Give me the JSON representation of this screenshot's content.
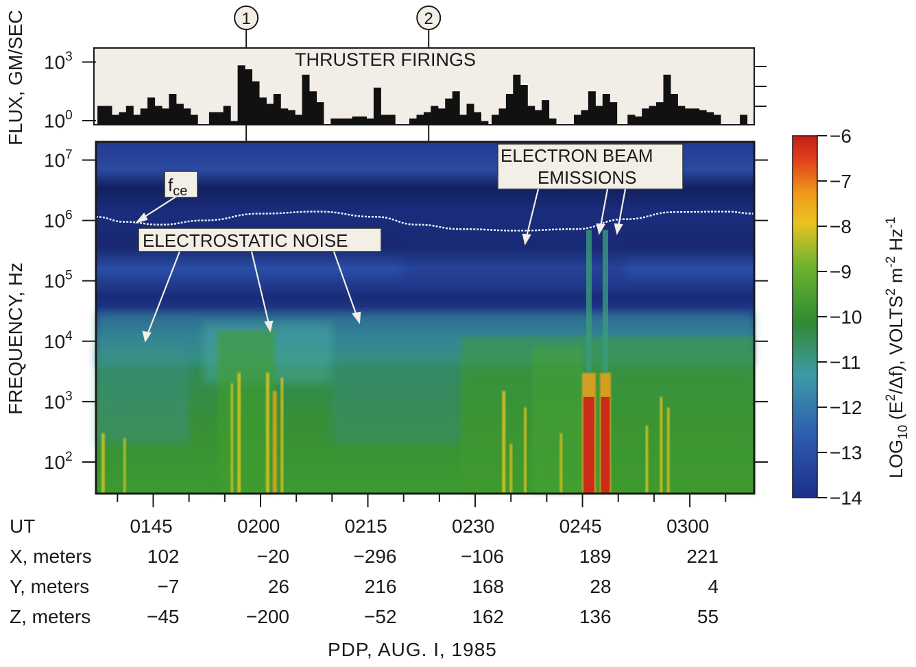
{
  "chart_data": [
    {
      "type": "bar",
      "title": "THRUSTER FIRINGS",
      "ylabel": "FLUX, GM/SEC",
      "yscale": "log",
      "ylim": [
        1,
        3000
      ],
      "yticks": [
        {
          "v": 1,
          "label": "10",
          "sup": "0"
        },
        {
          "v": 1000,
          "label": "10",
          "sup": "3"
        }
      ],
      "x_range_ut": [
        "01:37",
        "03:09"
      ],
      "x_start_min": 97,
      "x_end_min": 189,
      "bar_width_min": 1.0,
      "bars": [
        {
          "t": 97.2,
          "v": 8
        },
        {
          "t": 98.2,
          "v": 8
        },
        {
          "t": 99.2,
          "v": 3
        },
        {
          "t": 100.2,
          "v": 4
        },
        {
          "t": 101.2,
          "v": 8
        },
        {
          "t": 102.2,
          "v": 3
        },
        {
          "t": 103.2,
          "v": 6
        },
        {
          "t": 104.2,
          "v": 20
        },
        {
          "t": 105.2,
          "v": 8
        },
        {
          "t": 106.2,
          "v": 6
        },
        {
          "t": 107.2,
          "v": 30
        },
        {
          "t": 108.2,
          "v": 10
        },
        {
          "t": 109.2,
          "v": 6
        },
        {
          "t": 110.2,
          "v": 3
        },
        {
          "t": 112.8,
          "v": 4
        },
        {
          "t": 113.8,
          "v": 4
        },
        {
          "t": 114.8,
          "v": 8
        },
        {
          "t": 115.8,
          "v": 1.5
        },
        {
          "t": 116.8,
          "v": 700
        },
        {
          "t": 117.8,
          "v": 450
        },
        {
          "t": 118.8,
          "v": 120
        },
        {
          "t": 119.8,
          "v": 20
        },
        {
          "t": 120.8,
          "v": 10
        },
        {
          "t": 121.8,
          "v": 30
        },
        {
          "t": 122.8,
          "v": 6
        },
        {
          "t": 123.8,
          "v": 5
        },
        {
          "t": 124.8,
          "v": 3
        },
        {
          "t": 125.8,
          "v": 250
        },
        {
          "t": 126.8,
          "v": 40
        },
        {
          "t": 127.8,
          "v": 12
        },
        {
          "t": 129.8,
          "v": 2
        },
        {
          "t": 130.8,
          "v": 2
        },
        {
          "t": 131.8,
          "v": 2
        },
        {
          "t": 132.8,
          "v": 2.5
        },
        {
          "t": 133.8,
          "v": 2.5
        },
        {
          "t": 134.8,
          "v": 2
        },
        {
          "t": 135.8,
          "v": 60
        },
        {
          "t": 136.8,
          "v": 3
        },
        {
          "t": 137.8,
          "v": 3
        },
        {
          "t": 140.8,
          "v": 2
        },
        {
          "t": 141.8,
          "v": 3
        },
        {
          "t": 142.8,
          "v": 4
        },
        {
          "t": 143.8,
          "v": 8
        },
        {
          "t": 144.8,
          "v": 6
        },
        {
          "t": 145.8,
          "v": 18
        },
        {
          "t": 146.8,
          "v": 40
        },
        {
          "t": 147.8,
          "v": 3
        },
        {
          "t": 148.8,
          "v": 10
        },
        {
          "t": 149.8,
          "v": 4
        },
        {
          "t": 150.8,
          "v": 1.5
        },
        {
          "t": 152.3,
          "v": 3
        },
        {
          "t": 153.3,
          "v": 6
        },
        {
          "t": 154.3,
          "v": 30
        },
        {
          "t": 155.3,
          "v": 250
        },
        {
          "t": 156.3,
          "v": 80
        },
        {
          "t": 157.3,
          "v": 8
        },
        {
          "t": 158.3,
          "v": 5
        },
        {
          "t": 159.3,
          "v": 15
        },
        {
          "t": 160.3,
          "v": 2
        },
        {
          "t": 163.8,
          "v": 3
        },
        {
          "t": 164.8,
          "v": 5
        },
        {
          "t": 165.8,
          "v": 40
        },
        {
          "t": 166.8,
          "v": 8
        },
        {
          "t": 167.8,
          "v": 30
        },
        {
          "t": 168.8,
          "v": 12
        },
        {
          "t": 171.3,
          "v": 3
        },
        {
          "t": 172.3,
          "v": 2.5
        },
        {
          "t": 173.3,
          "v": 6
        },
        {
          "t": 174.3,
          "v": 8
        },
        {
          "t": 175.3,
          "v": 12
        },
        {
          "t": 176.3,
          "v": 250
        },
        {
          "t": 177.3,
          "v": 30
        },
        {
          "t": 178.3,
          "v": 8
        },
        {
          "t": 179.3,
          "v": 6
        },
        {
          "t": 180.3,
          "v": 6
        },
        {
          "t": 181.3,
          "v": 5
        },
        {
          "t": 182.3,
          "v": 4
        },
        {
          "t": 183.3,
          "v": 3
        },
        {
          "t": 187.0,
          "v": 3
        }
      ]
    },
    {
      "type": "heatmap",
      "ylabel": "FREQUENCY, Hz",
      "yscale": "log",
      "ylim": [
        30,
        20000000
      ],
      "yticks": [
        {
          "v": 100,
          "label": "10",
          "sup": "2"
        },
        {
          "v": 1000,
          "label": "10",
          "sup": "3"
        },
        {
          "v": 10000,
          "label": "10",
          "sup": "4"
        },
        {
          "v": 100000,
          "label": "10",
          "sup": "5"
        },
        {
          "v": 1000000,
          "label": "10",
          "sup": "6"
        },
        {
          "v": 10000000,
          "label": "10",
          "sup": "7"
        }
      ],
      "colorbar": {
        "label": "LOG",
        "label_sub": "10",
        "label_mid": " (E",
        "label_sup1": "2",
        "label_tail": "/Δf), VOLTS",
        "label_sup2": "2",
        "label_m": " m",
        "label_sup3": "-2",
        "label_hz": " Hz",
        "label_sup4": "-1",
        "range": [
          -14,
          -6
        ],
        "ticks": [
          "−6",
          "−7",
          "−8",
          "−9",
          "−10",
          "−11",
          "−12",
          "−13",
          "−14"
        ],
        "colors": [
          "#1c2f8a",
          "#2f5fb0",
          "#3f9aa8",
          "#2f8a34",
          "#6fb32f",
          "#e9c31f",
          "#f09a1a",
          "#e2431a",
          "#c41e1a"
        ]
      },
      "fce_curve": [
        {
          "t": 97,
          "f": 1150000
        },
        {
          "t": 101,
          "f": 950000
        },
        {
          "t": 106,
          "f": 850000
        },
        {
          "t": 112,
          "f": 1000000
        },
        {
          "t": 120,
          "f": 1300000
        },
        {
          "t": 128,
          "f": 1400000
        },
        {
          "t": 136,
          "f": 1150000
        },
        {
          "t": 142,
          "f": 850000
        },
        {
          "t": 148,
          "f": 720000
        },
        {
          "t": 156,
          "f": 680000
        },
        {
          "t": 164,
          "f": 720000
        },
        {
          "t": 171,
          "f": 1050000
        },
        {
          "t": 178,
          "f": 1380000
        },
        {
          "t": 185,
          "f": 1400000
        },
        {
          "t": 189,
          "f": 1300000
        }
      ],
      "annotations": [
        {
          "id": "fce",
          "text": "f",
          "sub": "ce"
        },
        {
          "id": "esn",
          "text": "ELECTROSTATIC NOISE"
        },
        {
          "id": "ebe1",
          "text": "ELECTRON BEAM"
        },
        {
          "id": "ebe2",
          "text": "EMISSIONS"
        }
      ],
      "markers": [
        {
          "label": "1",
          "t": 118
        },
        {
          "label": "2",
          "t": 143.5
        }
      ]
    }
  ],
  "xaxis": {
    "ut_label": "UT",
    "ticks": [
      {
        "min": 105,
        "label": "0145"
      },
      {
        "min": 120,
        "label": "0200"
      },
      {
        "min": 135,
        "label": "0215"
      },
      {
        "min": 150,
        "label": "0230"
      },
      {
        "min": 165,
        "label": "0245"
      },
      {
        "min": 180,
        "label": "0300"
      }
    ],
    "minor_step_min": 5
  },
  "position_table": {
    "rows": [
      {
        "label": "X, meters",
        "values": [
          "102",
          "−20",
          "−296",
          "−106",
          "189",
          "221"
        ]
      },
      {
        "label": "Y, meters",
        "values": [
          "−7",
          "26",
          "216",
          "168",
          "28",
          "4"
        ]
      },
      {
        "label": "Z, meters",
        "values": [
          "−45",
          "−200",
          "−52",
          "162",
          "136",
          "55"
        ]
      }
    ]
  },
  "footer": "PDP,  AUG. I, 1985"
}
